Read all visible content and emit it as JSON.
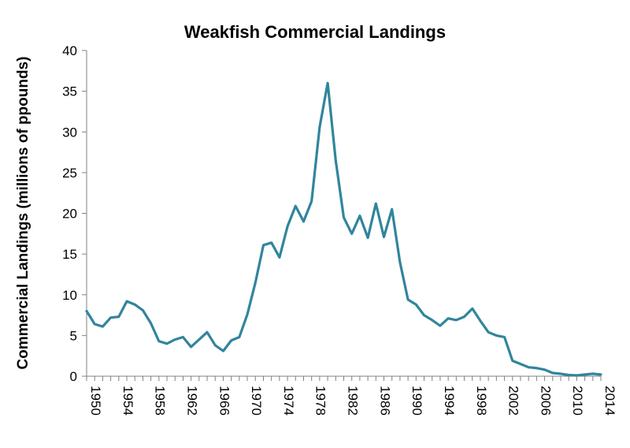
{
  "chart_data": {
    "type": "line",
    "title": "Weakfish Commercial Landings",
    "xlabel": "",
    "ylabel": "Commercial Landings (millions of ppounds)",
    "ylim": [
      0,
      40
    ],
    "yticks": [
      0,
      5,
      10,
      15,
      20,
      25,
      30,
      35,
      40
    ],
    "xlim": [
      1950,
      2014
    ],
    "xticks": [
      1950,
      1954,
      1958,
      1962,
      1966,
      1970,
      1974,
      1978,
      1982,
      1986,
      1990,
      1994,
      1998,
      2002,
      2006,
      2010,
      2014
    ],
    "grid": false,
    "legend": "none",
    "line_color": "#31859C",
    "series": [
      {
        "x": [
          1950,
          1951,
          1952,
          1953,
          1954,
          1955,
          1956,
          1957,
          1958,
          1959,
          1960,
          1961,
          1962,
          1963,
          1964,
          1965,
          1966,
          1967,
          1968,
          1969,
          1970,
          1971,
          1972,
          1973,
          1974,
          1975,
          1976,
          1977,
          1978,
          1979,
          1980,
          1981,
          1982,
          1983,
          1984,
          1985,
          1986,
          1987,
          1988,
          1989,
          1990,
          1991,
          1992,
          1993,
          1994,
          1995,
          1996,
          1997,
          1998,
          1999,
          2000,
          2001,
          2002,
          2003,
          2004,
          2005,
          2006,
          2007,
          2008,
          2009,
          2010,
          2011,
          2012,
          2013,
          2014
        ],
        "values": [
          8.0,
          6.4,
          6.1,
          7.2,
          7.3,
          9.2,
          8.8,
          8.1,
          6.5,
          4.3,
          4.0,
          4.5,
          4.8,
          3.6,
          4.5,
          5.4,
          3.8,
          3.1,
          4.4,
          4.8,
          7.6,
          11.5,
          16.1,
          16.4,
          14.6,
          18.4,
          20.9,
          19.0,
          21.5,
          30.6,
          36.0,
          26.5,
          19.5,
          17.5,
          19.7,
          17.0,
          21.2,
          17.1,
          20.5,
          14.0,
          9.4,
          8.8,
          7.5,
          6.9,
          6.2,
          7.1,
          6.9,
          7.3,
          8.3,
          6.8,
          5.4,
          5.0,
          4.8,
          1.9,
          1.5,
          1.1,
          1.0,
          0.8,
          0.4,
          0.3,
          0.15,
          0.1,
          0.2,
          0.3,
          0.2
        ]
      }
    ]
  }
}
